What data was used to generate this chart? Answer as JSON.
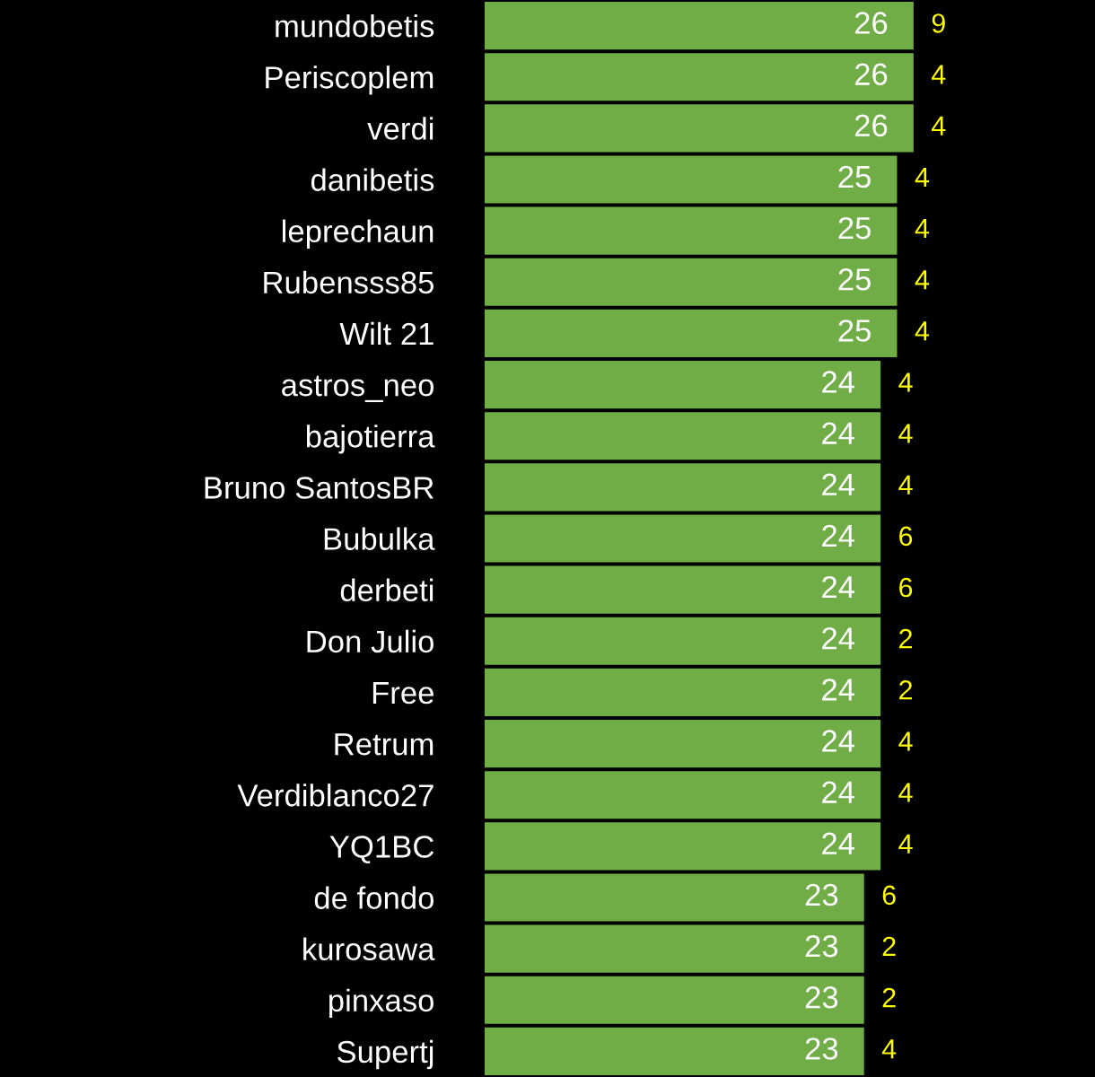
{
  "chart_data": {
    "type": "bar",
    "orientation": "horizontal",
    "categories": [
      "mundobetis",
      "Periscoplem",
      "verdi",
      "danibetis",
      "leprechaun",
      "Rubensss85",
      "Wilt 21",
      "astros_neo",
      "bajotierra",
      "Bruno SantosBR",
      "Bubulka",
      "derbeti",
      "Don Julio",
      "Free",
      "Retrum",
      "Verdiblanco27",
      "YQ1BC",
      "de fondo",
      "kurosawa",
      "pinxaso",
      "Supertj"
    ],
    "values": [
      26,
      26,
      26,
      25,
      25,
      25,
      25,
      24,
      24,
      24,
      24,
      24,
      24,
      24,
      24,
      24,
      24,
      23,
      23,
      23,
      23
    ],
    "color": "#70ad47",
    "data_labels": true,
    "xlim": [
      0,
      37
    ],
    "tick_labels": "y",
    "grid": false,
    "legend": false,
    "annotations": [
      "9",
      "4",
      "4",
      "4",
      "4",
      "4",
      "4",
      "4",
      "4",
      "4",
      "6",
      "6",
      "2",
      "2",
      "4",
      "4",
      "4",
      "6",
      "2",
      "2",
      "4"
    ]
  }
}
